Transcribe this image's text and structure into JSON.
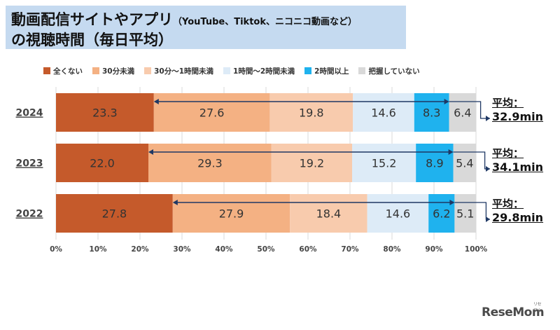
{
  "title": {
    "line1_main": "動画配信サイトやアプリ",
    "line1_sub": "（YouTube、Tiktok、ニコニコ動画など）",
    "line2": "の視聴時間（毎日平均）"
  },
  "logo": {
    "text": "ReseMom",
    "tiny": "リセマム"
  },
  "colors": {
    "none": "#c55a2b",
    "c30min": "#f4b183",
    "c30to1h": "#f8cbad",
    "c1to2h": "#ddebf7",
    "c2hplus": "#1fb2ee",
    "unknown": "#d9d9d9"
  },
  "chart_data": {
    "type": "bar",
    "orientation": "horizontal-stacked-100",
    "categories": [
      "2024",
      "2023",
      "2022"
    ],
    "series": [
      {
        "name": "全くない",
        "values": [
          23.3,
          22.0,
          27.8
        ]
      },
      {
        "name": "30分未満",
        "values": [
          27.6,
          29.3,
          27.9
        ]
      },
      {
        "name": "30分～1時間未満",
        "values": [
          19.8,
          19.2,
          18.4
        ]
      },
      {
        "name": "1時間～2時間未満",
        "values": [
          14.6,
          15.2,
          14.6
        ]
      },
      {
        "name": "2時間以上",
        "values": [
          8.3,
          8.9,
          6.2
        ]
      },
      {
        "name": "把握していない",
        "values": [
          6.4,
          5.4,
          5.1
        ]
      }
    ],
    "value_labels": [
      [
        "23.3",
        "27.6",
        "19.8",
        "14.6",
        "8.3",
        "6.4"
      ],
      [
        "22.0",
        "29.3",
        "19.2",
        "15.2",
        "8.9",
        "5.4"
      ],
      [
        "27.8",
        "27.9",
        "18.4",
        "14.6",
        "6.2",
        "5.1"
      ]
    ],
    "xlim": [
      0,
      100
    ],
    "xticks": [
      "0%",
      "10%",
      "20%",
      "30%",
      "40%",
      "50%",
      "60%",
      "70%",
      "80%",
      "90%",
      "100%"
    ],
    "legend_position": "top",
    "grid": true,
    "averages": [
      {
        "label": "平均：",
        "value": "32.9min"
      },
      {
        "label": "平均：",
        "value": "34.1min"
      },
      {
        "label": "平均：",
        "value": "29.8min"
      }
    ]
  }
}
